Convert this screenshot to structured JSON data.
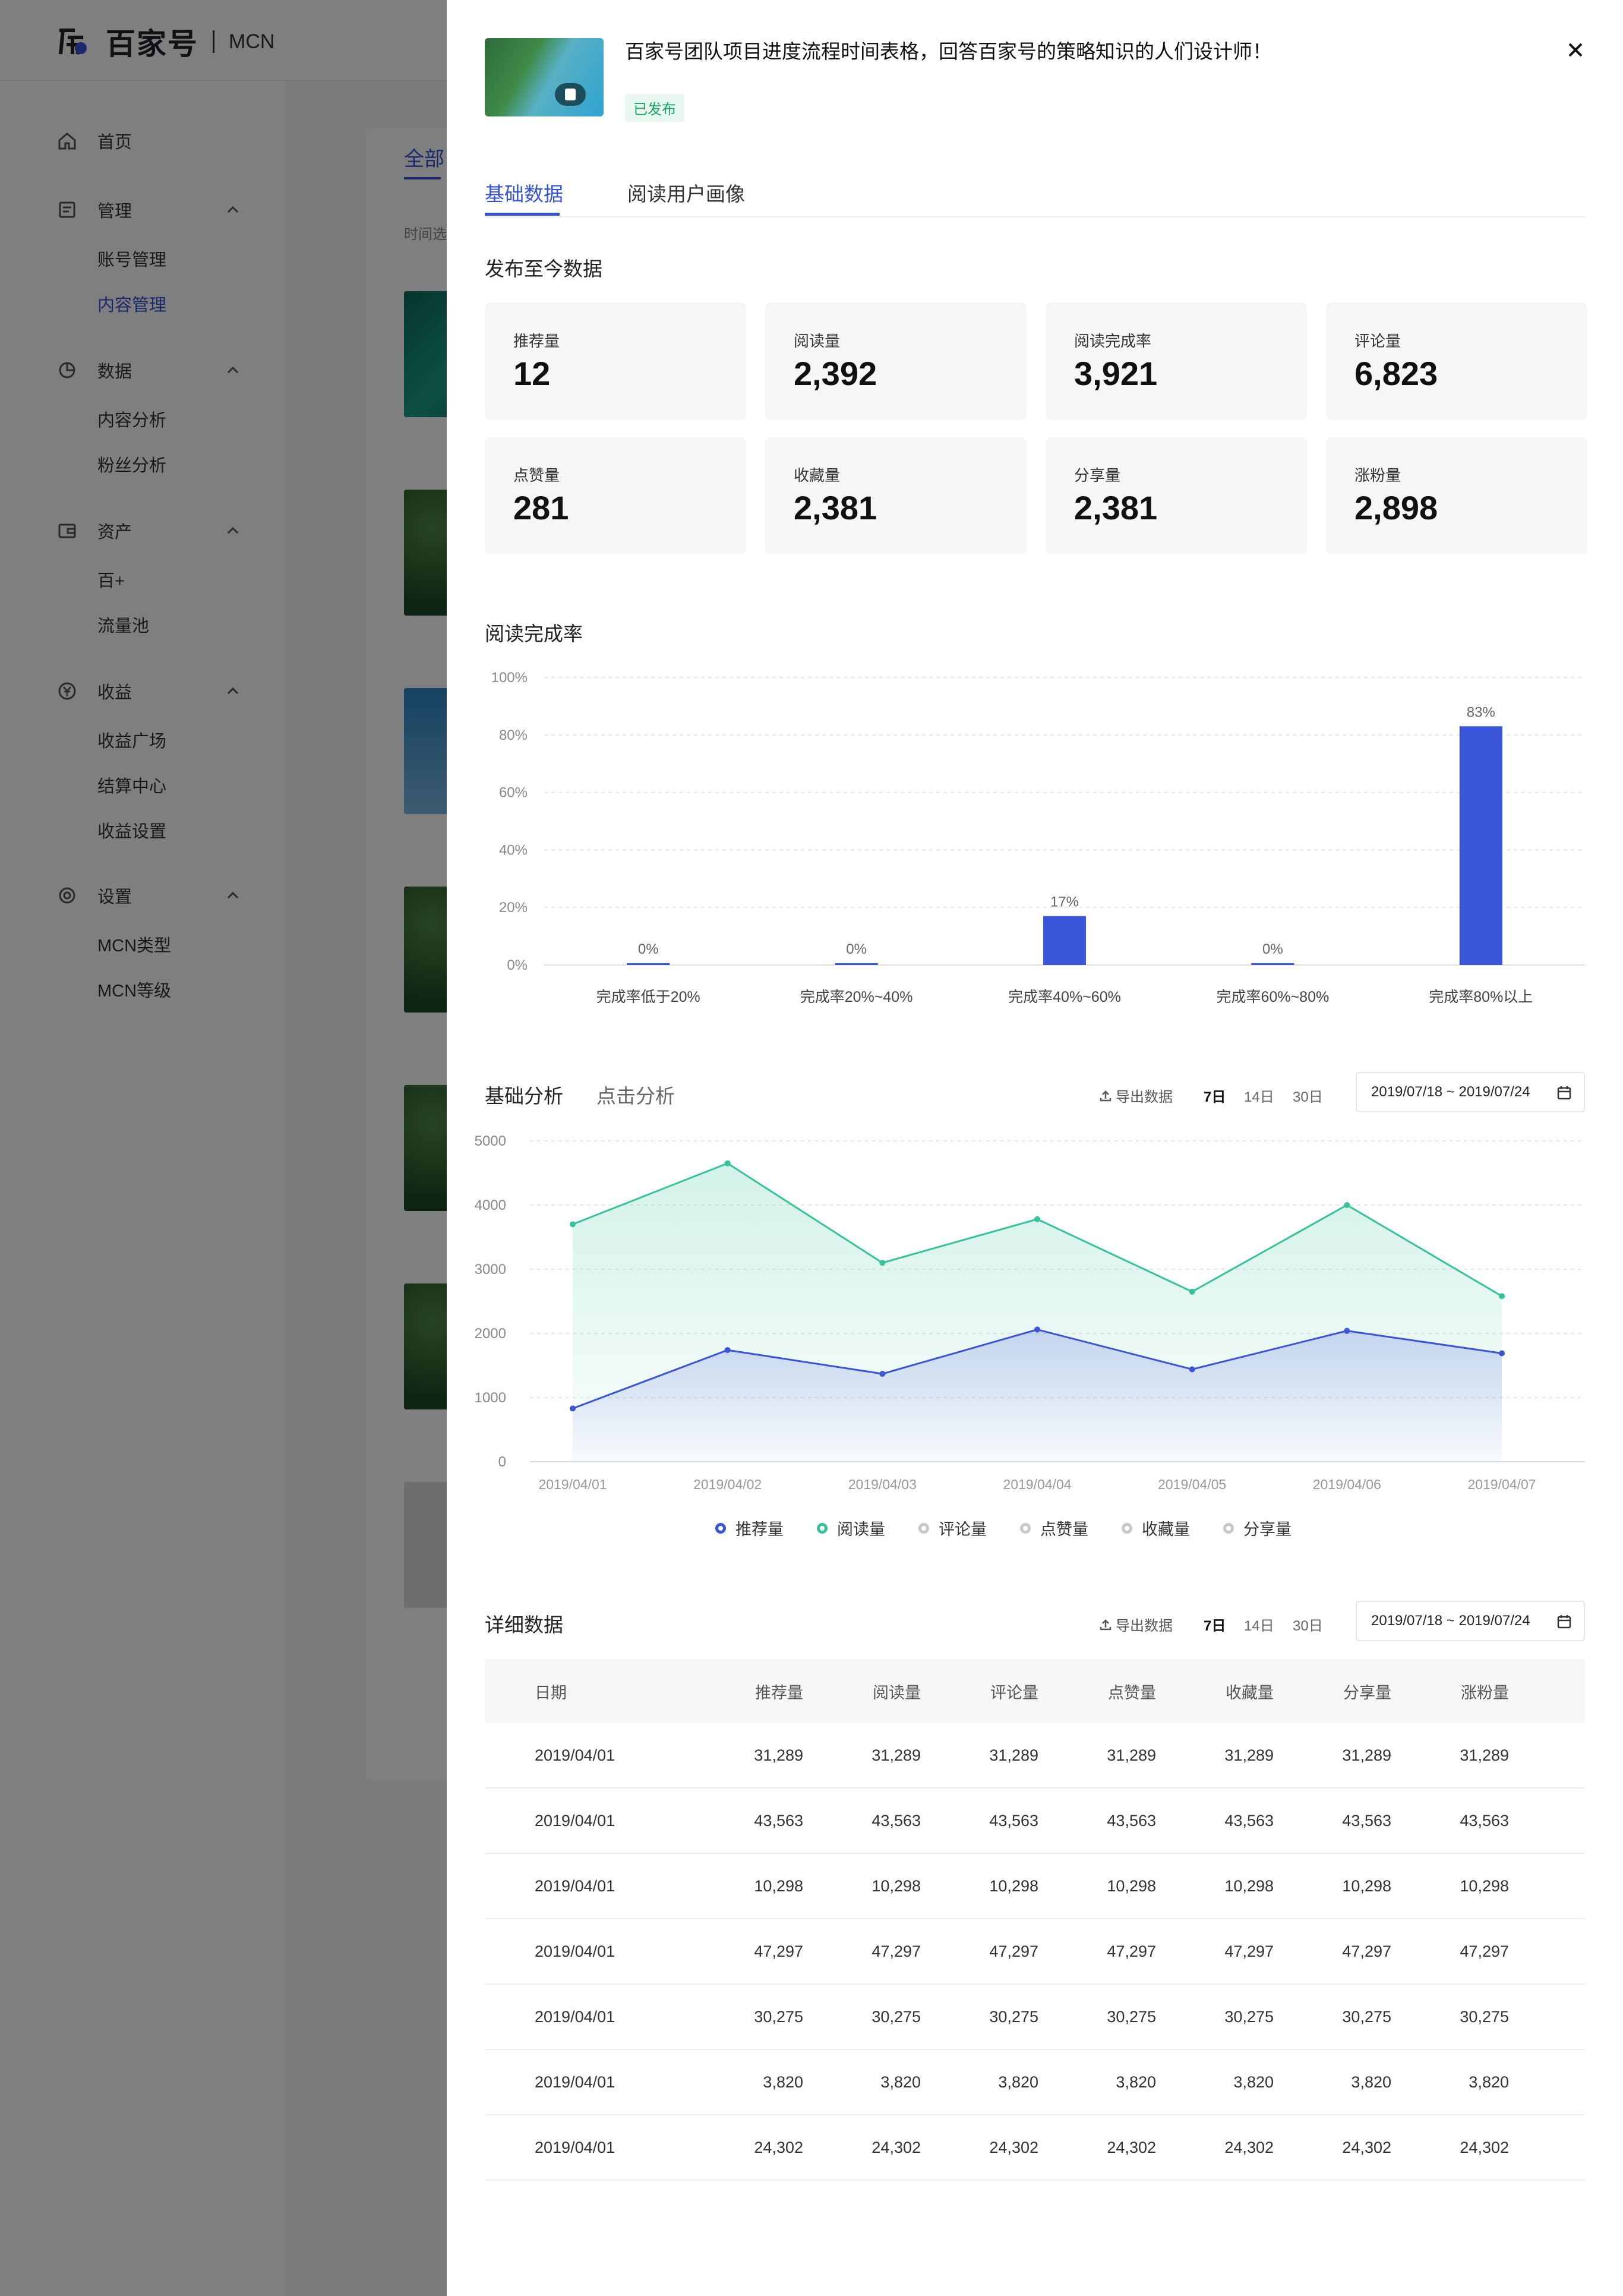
{
  "app": {
    "logo_text": "百家号",
    "logo_sub": "MCN"
  },
  "sidebar": {
    "home": "首页",
    "groups": [
      {
        "label": "管理",
        "items": [
          "账号管理",
          "内容管理"
        ]
      },
      {
        "label": "数据",
        "items": [
          "内容分析",
          "粉丝分析"
        ]
      },
      {
        "label": "资产",
        "items": [
          "百+",
          "流量池"
        ]
      },
      {
        "label": "收益",
        "items": [
          "收益广场",
          "结算中心",
          "收益设置"
        ]
      },
      {
        "label": "设置",
        "items": [
          "MCN类型",
          "MCN等级"
        ]
      }
    ],
    "active_item": "内容管理"
  },
  "background": {
    "tab_all": "全部",
    "filter_label": "时间选"
  },
  "drawer": {
    "title": "百家号团队项目进度流程时间表格，回答百家号的策略知识的人们设计师！",
    "status": "已发布",
    "tabs": [
      "基础数据",
      "阅读用户画像"
    ],
    "section_totals": "发布至今数据",
    "stats": [
      {
        "label": "推荐量",
        "value": "12"
      },
      {
        "label": "阅读量",
        "value": "2,392"
      },
      {
        "label": "阅读完成率",
        "value": "3,921"
      },
      {
        "label": "评论量",
        "value": "6,823"
      },
      {
        "label": "点赞量",
        "value": "281"
      },
      {
        "label": "收藏量",
        "value": "2,381"
      },
      {
        "label": "分享量",
        "value": "2,381"
      },
      {
        "label": "涨粉量",
        "value": "2,898"
      }
    ],
    "section_completion": "阅读完成率",
    "section_analysis_tabs": [
      "基础分析",
      "点击分析"
    ],
    "section_detail": "详细数据",
    "toolbar": {
      "export": "导出数据",
      "ranges": [
        "7日",
        "14日",
        "30日"
      ],
      "active_range": "7日",
      "date_range": "2019/07/18 ~ 2019/07/24"
    },
    "legend": [
      {
        "name": "推荐量",
        "color": "#3b55d8",
        "active": true
      },
      {
        "name": "阅读量",
        "color": "#35c49a",
        "active": true
      },
      {
        "name": "评论量",
        "color": "#c8c8c8",
        "active": false
      },
      {
        "name": "点赞量",
        "color": "#c8c8c8",
        "active": false
      },
      {
        "name": "收藏量",
        "color": "#c8c8c8",
        "active": false
      },
      {
        "name": "分享量",
        "color": "#c8c8c8",
        "active": false
      }
    ],
    "table": {
      "headers": [
        "日期",
        "推荐量",
        "阅读量",
        "评论量",
        "点赞量",
        "收藏量",
        "分享量",
        "涨粉量"
      ],
      "rows": [
        [
          "2019/04/01",
          "31,289",
          "31,289",
          "31,289",
          "31,289",
          "31,289",
          "31,289",
          "31,289"
        ],
        [
          "2019/04/01",
          "43,563",
          "43,563",
          "43,563",
          "43,563",
          "43,563",
          "43,563",
          "43,563"
        ],
        [
          "2019/04/01",
          "10,298",
          "10,298",
          "10,298",
          "10,298",
          "10,298",
          "10,298",
          "10,298"
        ],
        [
          "2019/04/01",
          "47,297",
          "47,297",
          "47,297",
          "47,297",
          "47,297",
          "47,297",
          "47,297"
        ],
        [
          "2019/04/01",
          "30,275",
          "30,275",
          "30,275",
          "30,275",
          "30,275",
          "30,275",
          "30,275"
        ],
        [
          "2019/04/01",
          "3,820",
          "3,820",
          "3,820",
          "3,820",
          "3,820",
          "3,820",
          "3,820"
        ],
        [
          "2019/04/01",
          "24,302",
          "24,302",
          "24,302",
          "24,302",
          "24,302",
          "24,302",
          "24,302"
        ]
      ]
    }
  },
  "chart_data": [
    {
      "type": "bar",
      "title": "阅读完成率",
      "categories": [
        "完成率低于20%",
        "完成率20%~40%",
        "完成率40%~60%",
        "完成率60%~80%",
        "完成率80%以上"
      ],
      "values": [
        0,
        0,
        17,
        0,
        83
      ],
      "value_labels": [
        "0%",
        "0%",
        "17%",
        "0%",
        "83%"
      ],
      "yticks": [
        "0%",
        "20%",
        "40%",
        "60%",
        "80%",
        "100%"
      ],
      "ylim": [
        0,
        100
      ],
      "color": "#3b55d8",
      "grid": true
    },
    {
      "type": "area",
      "categories": [
        "2019/04/01",
        "2019/04/02",
        "2019/04/03",
        "2019/04/04",
        "2019/04/05",
        "2019/04/06",
        "2019/04/07"
      ],
      "series": [
        {
          "name": "阅读量",
          "color": "#35c49a",
          "values": [
            3700,
            4650,
            3100,
            3780,
            2650,
            4000,
            2580
          ]
        },
        {
          "name": "推荐量",
          "color": "#3b55d8",
          "values": [
            830,
            1740,
            1370,
            2060,
            1440,
            2040,
            1690
          ]
        }
      ],
      "yticks": [
        "0",
        "1000",
        "2000",
        "3000",
        "4000",
        "5000"
      ],
      "ylim": [
        0,
        5000
      ],
      "grid": true,
      "legend": "bottom"
    }
  ]
}
